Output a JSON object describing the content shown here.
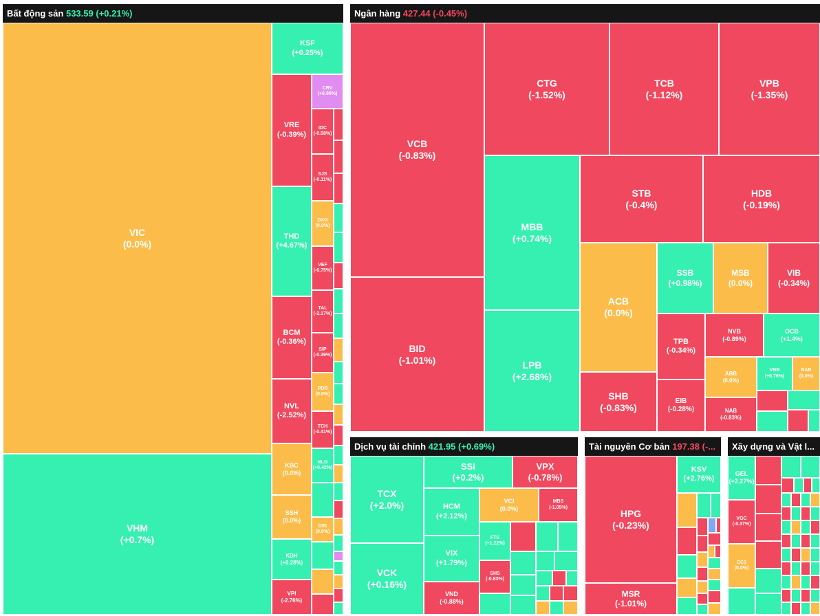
{
  "colors": {
    "up": "#35f0b0",
    "down": "#f0485e",
    "flat": "#fbbc4a",
    "ceiling": "#e08cf0",
    "floor": "#7fa8f5",
    "header_bg": "#161616"
  },
  "sectors": {
    "real_estate": {
      "name": "Bất động sản",
      "value": "533.59",
      "change": "(+0.21%)",
      "tiles": {
        "VIC": {
          "symbol": "VIC",
          "change": "(0.0%)"
        },
        "VHM": {
          "symbol": "VHM",
          "change": "(+0.7%)"
        },
        "KSF": {
          "symbol": "KSF",
          "change": "(+0.25%)"
        },
        "VRE": {
          "symbol": "VRE",
          "change": "(-0.39%)"
        },
        "THD": {
          "symbol": "THD",
          "change": "(+4.67%)"
        },
        "BCM": {
          "symbol": "BCM",
          "change": "(-0.36%)"
        },
        "NVL": {
          "symbol": "NVL",
          "change": "(-2.52%)"
        },
        "KBC": {
          "symbol": "KBC",
          "change": "(0.0%)"
        },
        "SSH": {
          "symbol": "SSH",
          "change": "(0.0%)"
        },
        "KDH": {
          "symbol": "KDH",
          "change": "(+0.28%)"
        },
        "VPI": {
          "symbol": "VPI",
          "change": "(-2.76%)"
        },
        "CRV": {
          "symbol": "CRV",
          "change": "(+6.99%)"
        },
        "IDC": {
          "symbol": "IDC",
          "change": "(-0.58%)"
        },
        "SJS": {
          "symbol": "SJS",
          "change": "(-0.11%)"
        },
        "DXG": {
          "symbol": "DXG",
          "change": "(0.0%)"
        },
        "VEF": {
          "symbol": "VEF",
          "change": "(-0.75%)"
        },
        "TAL": {
          "symbol": "TAL",
          "change": "(-2.17%)"
        },
        "SIP": {
          "symbol": "SIP",
          "change": "(-0.39%)"
        },
        "PDR": {
          "symbol": "PDR",
          "change": "(0.0%)"
        },
        "TCH": {
          "symbol": "TCH",
          "change": "(-0.41%)"
        },
        "NLG": {
          "symbol": "NLG",
          "change": "(+0.42%)"
        },
        "DIG": {
          "symbol": "DIG",
          "change": "(0.0%)"
        }
      }
    },
    "banking": {
      "name": "Ngân hàng",
      "value": "427.44",
      "change": "(-0.45%)",
      "tiles": {
        "VCB": {
          "symbol": "VCB",
          "change": "(-0.83%)"
        },
        "BID": {
          "symbol": "BID",
          "change": "(-1.01%)"
        },
        "CTG": {
          "symbol": "CTG",
          "change": "(-1.52%)"
        },
        "TCB": {
          "symbol": "TCB",
          "change": "(-1.12%)"
        },
        "VPB": {
          "symbol": "VPB",
          "change": "(-1.35%)"
        },
        "MBB": {
          "symbol": "MBB",
          "change": "(+0.74%)"
        },
        "LPB": {
          "symbol": "LPB",
          "change": "(+2.68%)"
        },
        "STB": {
          "symbol": "STB",
          "change": "(-0.4%)"
        },
        "HDB": {
          "symbol": "HDB",
          "change": "(-0.19%)"
        },
        "ACB": {
          "symbol": "ACB",
          "change": "(0.0%)"
        },
        "SHB": {
          "symbol": "SHB",
          "change": "(-0.83%)"
        },
        "SSB": {
          "symbol": "SSB",
          "change": "(+0.98%)"
        },
        "MSB": {
          "symbol": "MSB",
          "change": "(0.0%)"
        },
        "VIB": {
          "symbol": "VIB",
          "change": "(-0.34%)"
        },
        "TPB": {
          "symbol": "TPB",
          "change": "(-0.34%)"
        },
        "EIB": {
          "symbol": "EIB",
          "change": "(-0.28%)"
        },
        "NVB": {
          "symbol": "NVB",
          "change": "(-0.89%)"
        },
        "OCB": {
          "symbol": "OCB",
          "change": "(+1.4%)"
        },
        "ABB": {
          "symbol": "ABB",
          "change": "(0.0%)"
        },
        "VBB": {
          "symbol": "VBB",
          "change": "(+0.76%)"
        },
        "BAB": {
          "symbol": "BAB",
          "change": "(0.0%)"
        },
        "NAB": {
          "symbol": "NAB",
          "change": "(-0.83%)"
        }
      }
    },
    "financial_services": {
      "name": "Dịch vụ tài chính",
      "value": "421.95",
      "change": "(+0.69%)",
      "tiles": {
        "TCX": {
          "symbol": "TCX",
          "change": "(+2.0%)"
        },
        "VCK": {
          "symbol": "VCK",
          "change": "(+0.16%)"
        },
        "SSI": {
          "symbol": "SSI",
          "change": "(+0.2%)"
        },
        "VPX": {
          "symbol": "VPX",
          "change": "(-0.78%)"
        },
        "HCM": {
          "symbol": "HCM",
          "change": "(+2.12%)"
        },
        "VCI": {
          "symbol": "VCI",
          "change": "(0.0%)"
        },
        "MBS": {
          "symbol": "MBS",
          "change": "(-1.05%)"
        },
        "VIX": {
          "symbol": "VIX",
          "change": "(+1.79%)"
        },
        "VND": {
          "symbol": "VND",
          "change": "(-0.88%)"
        },
        "SHS": {
          "symbol": "SHS",
          "change": "(-0.83%)"
        },
        "FTS": {
          "symbol": "FTS",
          "change": "(+1.22%)"
        }
      }
    },
    "basic_resources": {
      "name": "Tài nguyên Cơ bản",
      "value": "197.38",
      "change": "(-...",
      "tiles": {
        "HPG": {
          "symbol": "HPG",
          "change": "(-0.23%)"
        },
        "MSR": {
          "symbol": "MSR",
          "change": "(-1.01%)"
        },
        "KSV": {
          "symbol": "KSV",
          "change": "(+2.76%)"
        }
      }
    },
    "construction": {
      "name": "Xây dựng và Vật l...",
      "tiles": {
        "GEL": {
          "symbol": "GEL",
          "change": "(+2.27%)"
        },
        "VGC": {
          "symbol": "VGC",
          "change": "(-0.37%)"
        },
        "CC1": {
          "symbol": "CC1",
          "change": "(0.0%)"
        }
      }
    }
  }
}
